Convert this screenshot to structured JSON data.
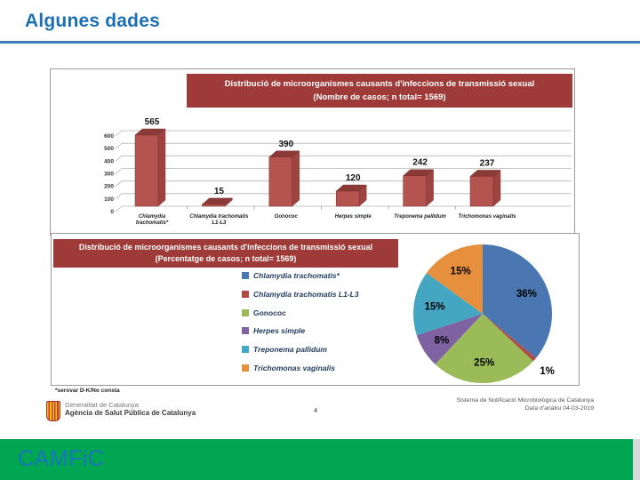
{
  "header": {
    "title": "Algunes dades"
  },
  "chart_data": [
    {
      "type": "bar",
      "title": "Distribució de microorganismes causants d'infeccions de transmissió sexual (Nombre de casos; n total= 1569)",
      "title_line1": "Distribució de microorganismes causants d'infeccions de transmissió sexual",
      "title_line2": "(Nombre de casos; n total= 1569)",
      "categories": [
        "Chlamydia trachomatis*",
        "Chlamydia trachomatis L1-L3",
        "Gonococ",
        "Herpes simple",
        "Treponema pallidum",
        "Trichomonas vaginalis"
      ],
      "category_lines": [
        [
          "Chlamydia",
          "trachomatis*"
        ],
        [
          "Chlamydia trachomatis",
          "L1-L3"
        ],
        [
          "Gonococ"
        ],
        [
          "Herpes simple"
        ],
        [
          "Treponema pallidum"
        ],
        [
          "Trichomonas vaginalis"
        ]
      ],
      "values": [
        565,
        15,
        390,
        120,
        242,
        237
      ],
      "ylabel": "",
      "xlabel": "",
      "ylim": [
        0,
        600
      ],
      "ytick_step": 100,
      "grid": true,
      "bar_color": "#b5534f",
      "bar_top_color": "#8a3a37",
      "bar_side_color": "#9d4340",
      "bar_outline_color": "#7c2f2d",
      "style": "3d"
    },
    {
      "type": "pie",
      "title": "Distribució de microorganismes causants d'infeccions de transmissió sexual (Percentatge de casos; n total= 1569)",
      "title_line1": "Distribució de microorganismes causants d'infeccions de transmissió sexual",
      "title_line2": "(Percentatge de casos; n total= 1569)",
      "labels": [
        "Chlamydia trachomatis*",
        "Chlamydia trachomatis L1-L3",
        "Gonococ",
        "Herpes simple",
        "Treponema pallidum",
        "Trichomonas vaginalis"
      ],
      "values_pct": [
        36,
        1,
        25,
        8,
        15,
        15
      ],
      "slice_labels": [
        "36%",
        "1%",
        "25%",
        "8%",
        "15%",
        "15%"
      ],
      "colors": [
        "#4a77b2",
        "#b04a47",
        "#9bbb59",
        "#7f62a1",
        "#44a6c0",
        "#e68f3c"
      ],
      "legend_position": "left-of-pie",
      "legend_italic": [
        true,
        true,
        false,
        true,
        true,
        true
      ]
    }
  ],
  "slide_footer": {
    "footnote": "*serovar D-K/No consta",
    "org_line1": "Generalitat de Catalunya",
    "org_line2": "Agència de Salut Pública de Catalunya",
    "page_number": "4",
    "source_line1": "Sistema de Notificació Microbiològica de Catalunya",
    "source_line2": "Data d'anàlisi 04-03-2019"
  },
  "bottom_bar": {
    "brand": "CAMFiC",
    "bar_color": "#00a651",
    "brand_color": "#1b75bc"
  }
}
